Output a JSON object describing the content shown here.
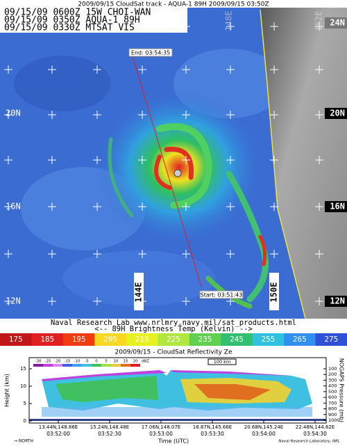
{
  "header": "2009/09/15 CloudSat track - AQUA-1 89H  2009/09/15 03:50Z",
  "info_lines": [
    "09/15/09 0600Z 15W CHOI-WAN",
    "09/15/09 0350Z AQUA-1 89H",
    "09/15/09 0330Z MTSAT VIS"
  ],
  "latitude_labels": [
    "24N",
    "20N",
    "16N",
    "12N"
  ],
  "longitude_labels": [
    "144E",
    "150E",
    "148E",
    "152E"
  ],
  "track": {
    "end": "End: 03:54:35",
    "start": "Start: 03:51:43"
  },
  "credit": "Naval Research Lab  www.nrlmry.navy.mil/sat_products.html",
  "colorbar": {
    "title": "<--      89H Brightness Temp (Kelvin)      -->",
    "labels": [
      175,
      185,
      195,
      205,
      215,
      225,
      235,
      245,
      255,
      265,
      275
    ]
  },
  "profile": {
    "title": "2009/09/15 - CloudSat Reflectivity Ze",
    "y_label": "Height (km)",
    "y2_label": "NOGAPS Pressure (mb)",
    "dbz_ticks": [
      -30,
      -25,
      -20,
      -15,
      -10,
      -5,
      0,
      5,
      10,
      15,
      20
    ],
    "dbz_unit": "dBZ",
    "scale": "100 km",
    "height_ticks": [
      0,
      5,
      10,
      15
    ],
    "pressure_ticks": [
      100,
      200,
      300,
      400,
      500,
      600,
      700,
      800,
      900,
      1000
    ],
    "locations": [
      "13.44N,148.86E",
      "15.24N,148.48E",
      "17.06N,148.07E",
      "18.87N,145.66E",
      "20.68N,145.24E",
      "22.48N,144.82E"
    ],
    "times": [
      "03:52:00",
      "03:52:30",
      "03:53:00",
      "03:53:30",
      "03:54:00",
      "03:54:30"
    ],
    "x_label": "Time (UTC)",
    "direction": "→ NORTH",
    "credit": "Naval Research Laboratory, NRL"
  }
}
